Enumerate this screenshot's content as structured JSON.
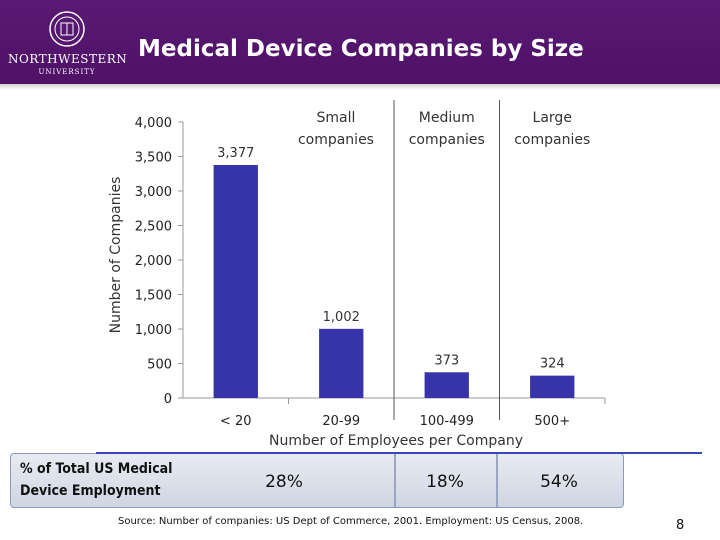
{
  "header": {
    "title": "Medical Device Companies by Size",
    "logo_name": "NORTHWESTERN",
    "logo_sub": "UNIVERSITY",
    "colors": {
      "band": "#4e1166",
      "text": "#ffffff"
    }
  },
  "chart_data": {
    "type": "bar",
    "categories": [
      "< 20",
      "20-99",
      "100-499",
      "500+"
    ],
    "values": [
      3377,
      1002,
      373,
      324
    ],
    "value_labels": [
      "3,377",
      "1,002",
      "373",
      "324"
    ],
    "title": "",
    "xlabel": "Number of Employees per Company",
    "ylabel": "Number of Companies",
    "ylim": [
      0,
      4000
    ],
    "yticks": [
      0,
      500,
      1000,
      1500,
      2000,
      2500,
      3000,
      3500,
      4000
    ],
    "ytick_labels": [
      "0",
      "500",
      "1,000",
      "1,500",
      "2,000",
      "2,500",
      "3,000",
      "3,500",
      "4,000"
    ],
    "groups": [
      {
        "label_line1": "Small",
        "label_line2": "companies"
      },
      {
        "label_line1": "Medium",
        "label_line2": "companies"
      },
      {
        "label_line1": "Large",
        "label_line2": "companies"
      }
    ],
    "bar_color": "#3634a8"
  },
  "employment": {
    "label_line1": "% of Total US Medical",
    "label_line2": "Device Employment",
    "values": [
      "28%",
      "18%",
      "54%"
    ]
  },
  "footer": {
    "source": "Source: Number of companies: US Dept of Commerce, 2001. Employment: US Census, 2008.",
    "page_number": "8"
  }
}
